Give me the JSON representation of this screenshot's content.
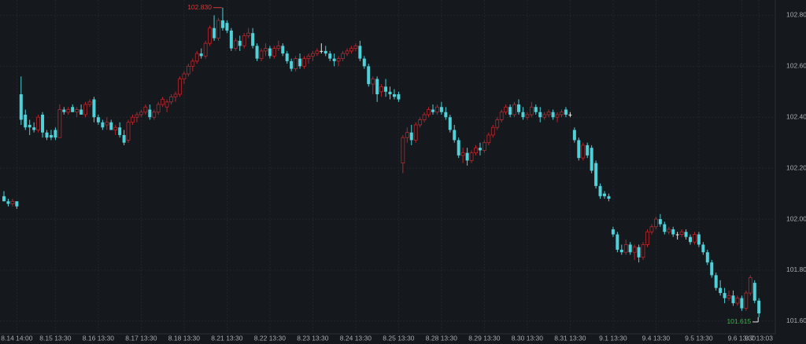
{
  "chart_data": {
    "type": "candlestick",
    "ylim": [
      101.55,
      102.86
    ],
    "yticks": [
      {
        "value": 101.6,
        "label": "101.60"
      },
      {
        "value": 101.8,
        "label": "101.80"
      },
      {
        "value": 102.0,
        "label": "102.00"
      },
      {
        "value": 102.2,
        "label": "102.20"
      },
      {
        "value": 102.4,
        "label": "102.40"
      },
      {
        "value": 102.6,
        "label": "102.60"
      },
      {
        "value": 102.8,
        "label": "102.80"
      }
    ],
    "grid": true,
    "up_color": "#b8262c",
    "down_color": "#4fd1d9",
    "max_label": "102.830",
    "min_label": "101.615",
    "categories": [
      null,
      null,
      null,
      "8.14 14:00",
      null,
      null,
      null,
      null,
      null,
      null,
      null,
      null,
      "8.15 13:30",
      null,
      null,
      null,
      null,
      null,
      null,
      null,
      null,
      null,
      "8.16 13:30",
      null,
      null,
      null,
      null,
      null,
      null,
      null,
      null,
      null,
      "8.17 13:30",
      null,
      null,
      null,
      null,
      null,
      null,
      null,
      null,
      null,
      "8.18 13:30",
      null,
      null,
      null,
      null,
      null,
      null,
      null,
      null,
      null,
      "8.21 13:30",
      null,
      null,
      null,
      null,
      null,
      null,
      null,
      null,
      null,
      "8.22 13:30",
      null,
      null,
      null,
      null,
      null,
      null,
      null,
      null,
      null,
      "8.23 13:30",
      null,
      null,
      null,
      null,
      null,
      null,
      null,
      null,
      null,
      "8.24 13:30",
      null,
      null,
      null,
      null,
      null,
      null,
      null,
      null,
      null,
      "8.25 13:30",
      null,
      null,
      null,
      null,
      null,
      null,
      null,
      null,
      null,
      "8.28 13:30",
      null,
      null,
      null,
      null,
      null,
      null,
      null,
      null,
      null,
      "8.29 13:30",
      null,
      null,
      null,
      null,
      null,
      null,
      null,
      null,
      null,
      "8.30 13:30",
      null,
      null,
      null,
      null,
      null,
      null,
      null,
      null,
      null,
      "8.31 13:30",
      null,
      null,
      null,
      null,
      null,
      null,
      null,
      null,
      null,
      "9.1 13:30",
      null,
      null,
      null,
      null,
      null,
      null,
      null,
      null,
      null,
      "9.4 13:30",
      null,
      null,
      null,
      null,
      null,
      null,
      null,
      null,
      null,
      "9.5 13:30",
      null,
      null,
      null,
      null,
      null,
      null,
      null,
      null,
      null,
      "9.6 13:30",
      null,
      null,
      null,
      "9.7 13:03"
    ],
    "ohlc": [
      [
        102.09,
        102.11,
        102.07,
        102.07
      ],
      [
        102.07,
        102.08,
        102.05,
        102.06
      ],
      [
        102.06,
        102.08,
        102.05,
        102.07
      ],
      [
        102.07,
        102.07,
        102.04,
        102.05
      ],
      [
        102.49,
        102.56,
        102.37,
        102.39
      ],
      [
        102.41,
        102.43,
        102.35,
        102.36
      ],
      [
        102.37,
        102.39,
        102.33,
        102.36
      ],
      [
        102.36,
        102.38,
        102.34,
        102.35
      ],
      [
        102.35,
        102.41,
        102.34,
        102.4
      ],
      [
        102.41,
        102.42,
        102.32,
        102.34
      ],
      [
        102.34,
        102.35,
        102.31,
        102.32
      ],
      [
        102.33,
        102.35,
        102.31,
        102.32
      ],
      [
        102.35,
        102.36,
        102.31,
        102.32
      ],
      [
        102.32,
        102.45,
        102.32,
        102.43
      ],
      [
        102.43,
        102.44,
        102.41,
        102.42
      ],
      [
        102.42,
        102.44,
        102.41,
        102.43
      ],
      [
        102.44,
        102.45,
        102.42,
        102.42
      ],
      [
        102.42,
        102.44,
        102.4,
        102.43
      ],
      [
        102.43,
        102.45,
        102.41,
        102.41
      ],
      [
        102.41,
        102.46,
        102.4,
        102.45
      ],
      [
        102.45,
        102.47,
        102.44,
        102.46
      ],
      [
        102.47,
        102.48,
        102.38,
        102.4
      ],
      [
        102.4,
        102.41,
        102.37,
        102.38
      ],
      [
        102.38,
        102.39,
        102.35,
        102.36
      ],
      [
        102.37,
        102.4,
        102.35,
        102.38
      ],
      [
        102.38,
        102.39,
        102.35,
        102.35
      ],
      [
        102.35,
        102.37,
        102.33,
        102.36
      ],
      [
        102.36,
        102.38,
        102.32,
        102.33
      ],
      [
        102.33,
        102.35,
        102.29,
        102.3
      ],
      [
        102.31,
        102.39,
        102.3,
        102.38
      ],
      [
        102.38,
        102.41,
        102.37,
        102.4
      ],
      [
        102.4,
        102.42,
        102.38,
        102.41
      ],
      [
        102.41,
        102.43,
        102.4,
        102.42
      ],
      [
        102.42,
        102.45,
        102.41,
        102.44
      ],
      [
        102.43,
        102.45,
        102.39,
        102.4
      ],
      [
        102.4,
        102.43,
        102.39,
        102.42
      ],
      [
        102.42,
        102.46,
        102.41,
        102.45
      ],
      [
        102.45,
        102.48,
        102.44,
        102.47
      ],
      [
        102.44,
        102.47,
        102.42,
        102.46
      ],
      [
        102.46,
        102.49,
        102.45,
        102.48
      ],
      [
        102.48,
        102.5,
        102.46,
        102.49
      ],
      [
        102.49,
        102.56,
        102.48,
        102.55
      ],
      [
        102.55,
        102.58,
        102.53,
        102.57
      ],
      [
        102.57,
        102.61,
        102.56,
        102.6
      ],
      [
        102.6,
        102.63,
        102.58,
        102.62
      ],
      [
        102.62,
        102.66,
        102.61,
        102.65
      ],
      [
        102.65,
        102.67,
        102.63,
        102.64
      ],
      [
        102.64,
        102.7,
        102.63,
        102.69
      ],
      [
        102.69,
        102.76,
        102.68,
        102.75
      ],
      [
        102.75,
        102.8,
        102.7,
        102.71
      ],
      [
        102.71,
        102.79,
        102.7,
        102.78
      ],
      [
        102.78,
        102.83,
        102.74,
        102.75
      ],
      [
        102.77,
        102.78,
        102.73,
        102.74
      ],
      [
        102.74,
        102.75,
        102.66,
        102.67
      ],
      [
        102.67,
        102.71,
        102.66,
        102.7
      ],
      [
        102.7,
        102.72,
        102.66,
        102.68
      ],
      [
        102.68,
        102.73,
        102.67,
        102.72
      ],
      [
        102.72,
        102.75,
        102.71,
        102.73
      ],
      [
        102.73,
        102.75,
        102.67,
        102.68
      ],
      [
        102.68,
        102.69,
        102.62,
        102.63
      ],
      [
        102.63,
        102.67,
        102.62,
        102.66
      ],
      [
        102.66,
        102.69,
        102.64,
        102.67
      ],
      [
        102.67,
        102.68,
        102.63,
        102.64
      ],
      [
        102.64,
        102.68,
        102.63,
        102.67
      ],
      [
        102.67,
        102.7,
        102.66,
        102.68
      ],
      [
        102.68,
        102.69,
        102.64,
        102.65
      ],
      [
        102.65,
        102.66,
        102.61,
        102.62
      ],
      [
        102.62,
        102.63,
        102.58,
        102.59
      ],
      [
        102.59,
        102.64,
        102.58,
        102.63
      ],
      [
        102.63,
        102.65,
        102.59,
        102.6
      ],
      [
        102.6,
        102.64,
        102.59,
        102.63
      ],
      [
        102.63,
        102.65,
        102.61,
        102.64
      ],
      [
        102.64,
        102.66,
        102.62,
        102.65
      ],
      [
        102.65,
        102.67,
        102.64,
        102.66
      ],
      [
        102.66,
        102.69,
        102.65,
        102.66
      ],
      [
        102.66,
        102.68,
        102.64,
        102.65
      ],
      [
        102.65,
        102.66,
        102.62,
        102.63
      ],
      [
        102.63,
        102.65,
        102.6,
        102.62
      ],
      [
        102.62,
        102.64,
        102.6,
        102.63
      ],
      [
        102.63,
        102.66,
        102.62,
        102.65
      ],
      [
        102.65,
        102.67,
        102.64,
        102.66
      ],
      [
        102.66,
        102.68,
        102.65,
        102.67
      ],
      [
        102.67,
        102.69,
        102.66,
        102.68
      ],
      [
        102.68,
        102.7,
        102.62,
        102.63
      ],
      [
        102.63,
        102.64,
        102.59,
        102.6
      ],
      [
        102.6,
        102.61,
        102.52,
        102.53
      ],
      [
        102.53,
        102.56,
        102.49,
        102.55
      ],
      [
        102.55,
        102.56,
        102.46,
        102.49
      ],
      [
        102.5,
        102.53,
        102.48,
        102.52
      ],
      [
        102.52,
        102.55,
        102.48,
        102.5
      ],
      [
        102.5,
        102.52,
        102.47,
        102.49
      ],
      [
        102.49,
        102.51,
        102.47,
        102.48
      ],
      [
        102.49,
        102.5,
        102.46,
        102.47
      ],
      [
        102.22,
        102.33,
        102.18,
        102.32
      ],
      [
        102.32,
        102.36,
        102.3,
        102.34
      ],
      [
        102.34,
        102.37,
        102.29,
        102.31
      ],
      [
        102.31,
        102.38,
        102.3,
        102.37
      ],
      [
        102.37,
        102.4,
        102.36,
        102.39
      ],
      [
        102.39,
        102.42,
        102.38,
        102.41
      ],
      [
        102.41,
        102.44,
        102.4,
        102.43
      ],
      [
        102.43,
        102.45,
        102.41,
        102.42
      ],
      [
        102.42,
        102.45,
        102.41,
        102.44
      ],
      [
        102.44,
        102.46,
        102.41,
        102.42
      ],
      [
        102.42,
        102.44,
        102.39,
        102.4
      ],
      [
        102.4,
        102.41,
        102.34,
        102.35
      ],
      [
        102.35,
        102.37,
        102.3,
        102.31
      ],
      [
        102.31,
        102.32,
        102.24,
        102.25
      ],
      [
        102.25,
        102.28,
        102.22,
        102.26
      ],
      [
        102.26,
        102.28,
        102.21,
        102.23
      ],
      [
        102.23,
        102.27,
        102.22,
        102.26
      ],
      [
        102.26,
        102.29,
        102.25,
        102.28
      ],
      [
        102.28,
        102.3,
        102.25,
        102.27
      ],
      [
        102.27,
        102.31,
        102.26,
        102.3
      ],
      [
        102.3,
        102.34,
        102.29,
        102.33
      ],
      [
        102.33,
        102.37,
        102.32,
        102.36
      ],
      [
        102.36,
        102.4,
        102.35,
        102.39
      ],
      [
        102.39,
        102.43,
        102.38,
        102.42
      ],
      [
        102.42,
        102.45,
        102.41,
        102.44
      ],
      [
        102.44,
        102.45,
        102.4,
        102.41
      ],
      [
        102.41,
        102.46,
        102.4,
        102.45
      ],
      [
        102.45,
        102.47,
        102.41,
        102.42
      ],
      [
        102.42,
        102.44,
        102.39,
        102.4
      ],
      [
        102.4,
        102.42,
        102.39,
        102.41
      ],
      [
        102.41,
        102.46,
        102.4,
        102.44
      ],
      [
        102.44,
        102.45,
        102.41,
        102.42
      ],
      [
        102.42,
        102.44,
        102.38,
        102.4
      ],
      [
        102.4,
        102.42,
        102.39,
        102.41
      ],
      [
        102.41,
        102.43,
        102.4,
        102.42
      ],
      [
        102.42,
        102.43,
        102.39,
        102.4
      ],
      [
        102.4,
        102.42,
        102.38,
        102.41
      ],
      [
        102.41,
        102.43,
        102.4,
        102.42
      ],
      [
        102.43,
        102.44,
        102.4,
        102.41
      ],
      [
        102.41,
        102.42,
        102.4,
        102.41
      ],
      [
        102.35,
        102.36,
        102.3,
        102.31
      ],
      [
        102.31,
        102.32,
        102.23,
        102.24
      ],
      [
        102.24,
        102.3,
        102.23,
        102.29
      ],
      [
        102.29,
        102.3,
        102.24,
        102.25
      ],
      [
        102.28,
        102.29,
        102.18,
        102.19
      ],
      [
        102.22,
        102.23,
        102.12,
        102.13
      ],
      [
        102.13,
        102.14,
        102.08,
        102.09
      ],
      [
        102.1,
        102.11,
        102.08,
        102.09
      ],
      [
        102.09,
        102.1,
        102.07,
        102.08
      ],
      [
        101.96,
        101.97,
        101.93,
        101.94
      ],
      [
        101.94,
        101.95,
        101.87,
        101.88
      ],
      [
        101.88,
        101.9,
        101.86,
        101.87
      ],
      [
        101.87,
        101.92,
        101.86,
        101.9
      ],
      [
        101.9,
        101.91,
        101.86,
        101.87
      ],
      [
        101.87,
        101.9,
        101.84,
        101.89
      ],
      [
        101.89,
        101.9,
        101.83,
        101.85
      ],
      [
        101.85,
        101.91,
        101.84,
        101.9
      ],
      [
        101.9,
        101.96,
        101.89,
        101.95
      ],
      [
        101.95,
        101.98,
        101.94,
        101.97
      ],
      [
        101.97,
        102.01,
        101.96,
        102.0
      ],
      [
        102.0,
        102.02,
        101.97,
        101.98
      ],
      [
        101.98,
        101.99,
        101.94,
        101.95
      ],
      [
        101.95,
        101.97,
        101.94,
        101.96
      ],
      [
        101.96,
        101.97,
        101.93,
        101.94
      ],
      [
        101.94,
        101.95,
        101.92,
        101.94
      ],
      [
        101.94,
        101.96,
        101.93,
        101.95
      ],
      [
        101.95,
        101.96,
        101.92,
        101.93
      ],
      [
        101.93,
        101.94,
        101.9,
        101.91
      ],
      [
        101.91,
        101.95,
        101.9,
        101.94
      ],
      [
        101.94,
        101.95,
        101.89,
        101.9
      ],
      [
        101.9,
        101.91,
        101.86,
        101.87
      ],
      [
        101.87,
        101.88,
        101.82,
        101.83
      ],
      [
        101.83,
        101.84,
        101.77,
        101.78
      ],
      [
        101.78,
        101.79,
        101.72,
        101.73
      ],
      [
        101.73,
        101.76,
        101.7,
        101.71
      ],
      [
        101.71,
        101.73,
        101.67,
        101.69
      ],
      [
        101.69,
        101.72,
        101.68,
        101.7
      ],
      [
        101.7,
        101.72,
        101.66,
        101.67
      ],
      [
        101.67,
        101.7,
        101.66,
        101.69
      ],
      [
        101.69,
        101.7,
        101.64,
        101.65
      ],
      [
        101.65,
        101.72,
        101.64,
        101.71
      ],
      [
        101.71,
        101.78,
        101.7,
        101.77
      ],
      [
        101.75,
        101.76,
        101.67,
        101.68
      ],
      [
        101.68,
        101.69,
        101.615,
        101.63
      ]
    ]
  }
}
